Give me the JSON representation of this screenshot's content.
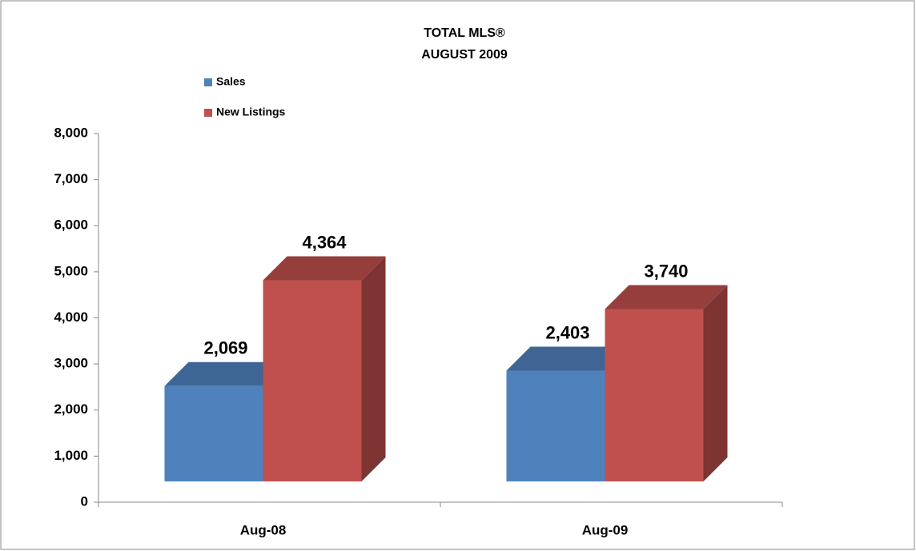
{
  "chart_data": {
    "type": "bar3d",
    "title": "TOTAL MLS®",
    "subtitle": "AUGUST 2009",
    "categories": [
      "Aug-08",
      "Aug-09"
    ],
    "series": [
      {
        "name": "Sales",
        "color": "#4f81bd",
        "values": [
          2069,
          2403
        ],
        "value_labels": [
          "2,069",
          "2,403"
        ]
      },
      {
        "name": "New Listings",
        "color": "#c0504d",
        "values": [
          4364,
          3740
        ],
        "value_labels": [
          "4,364",
          "3,740"
        ]
      }
    ],
    "ylim": [
      0,
      8000
    ],
    "yticks": [
      0,
      {
        "value": 1000,
        "label": "1,000"
      },
      {
        "value": 2000,
        "label": "2,000"
      },
      {
        "value": 3000,
        "label": "3,000"
      },
      {
        "value": 4000,
        "label": "4,000"
      },
      {
        "value": 5000,
        "label": "5,000"
      },
      {
        "value": 6000,
        "label": "6,000"
      },
      {
        "value": 7000,
        "label": "7,000"
      },
      {
        "value": 8000,
        "label": "8,000"
      }
    ],
    "legend": "top-left"
  }
}
